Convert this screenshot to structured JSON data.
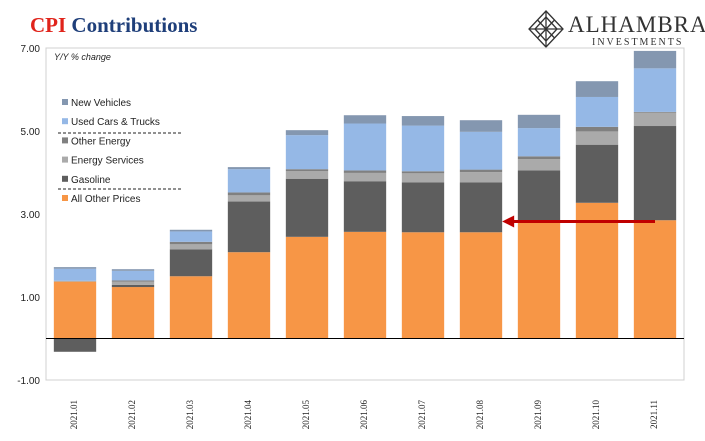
{
  "header": {
    "title_part1": "CPI",
    "title_part2": "Contributions",
    "logo_name": "ALHAMBRA",
    "logo_sub": "INVESTMENTS"
  },
  "chart_data": {
    "type": "bar",
    "stacked": true,
    "title": "CPI Contributions",
    "ylabel": "Y/Y % change",
    "ylim": [
      -1.0,
      7.0
    ],
    "yticks": [
      "-1.00",
      "1.00",
      "3.00",
      "5.00",
      "7.00"
    ],
    "ytick_values": [
      -1,
      1,
      3,
      5,
      7
    ],
    "grid": false,
    "legend_position": "left",
    "categories": [
      "2021.01",
      "2021.02",
      "2021.03",
      "2021.04",
      "2021.05",
      "2021.06",
      "2021.07",
      "2021.08",
      "2021.09",
      "2021.10",
      "2021.11"
    ],
    "series": [
      {
        "name": "All Other Prices",
        "color": "#f79646",
        "values": [
          1.37,
          1.24,
          1.5,
          2.08,
          2.45,
          2.57,
          2.56,
          2.56,
          2.8,
          3.27,
          2.85
        ]
      },
      {
        "name": "Gasoline",
        "color": "#5e5e5e",
        "values": [
          -0.32,
          0.05,
          0.65,
          1.22,
          1.4,
          1.22,
          1.2,
          1.2,
          1.25,
          1.4,
          2.27
        ]
      },
      {
        "name": "Energy Services",
        "color": "#aaaaaa",
        "values": [
          0.02,
          0.08,
          0.12,
          0.15,
          0.18,
          0.2,
          0.22,
          0.25,
          0.27,
          0.32,
          0.32
        ]
      },
      {
        "name": "Other Energy",
        "color": "#808080",
        "values": [
          0.0,
          0.03,
          0.06,
          0.07,
          0.05,
          0.06,
          0.05,
          0.06,
          0.07,
          0.11,
          0.02
        ]
      },
      {
        "name": "Used Cars & Trucks",
        "color": "#95b8e6",
        "values": [
          0.29,
          0.23,
          0.25,
          0.56,
          0.82,
          1.13,
          1.1,
          0.91,
          0.68,
          0.72,
          1.05
        ]
      },
      {
        "name": "New Vehicles",
        "color": "#8497b0",
        "values": [
          0.04,
          0.04,
          0.04,
          0.05,
          0.12,
          0.2,
          0.23,
          0.28,
          0.32,
          0.38,
          0.42
        ]
      }
    ],
    "legend_order": [
      "New Vehicles",
      "Used Cars & Trucks",
      "Other Energy",
      "Energy Services",
      "Gasoline",
      "All Other Prices"
    ],
    "annotation": {
      "type": "arrow",
      "color": "#c00000",
      "from_category": "2021.11",
      "to_category": "2021.08",
      "y": 2.82
    }
  }
}
